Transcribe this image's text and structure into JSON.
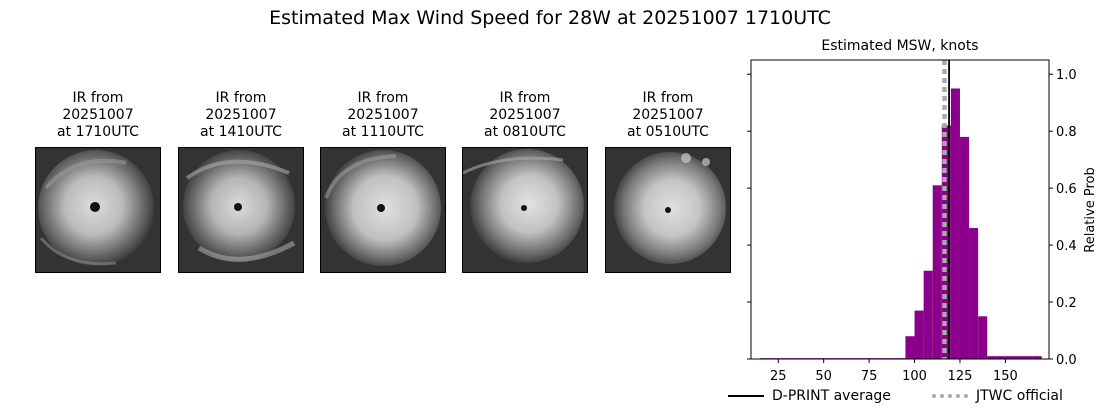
{
  "figure": {
    "title": "Estimated Max Wind Speed for 28W at 20251007 1710UTC"
  },
  "ir_panels": [
    {
      "caption": "IR from\n20251007\nat 1710UTC"
    },
    {
      "caption": "IR from\n20251007\nat 1410UTC"
    },
    {
      "caption": "IR from\n20251007\nat 1110UTC"
    },
    {
      "caption": "IR from\n20251007\nat 0810UTC"
    },
    {
      "caption": "IR from\n20251007\nat 0510UTC"
    }
  ],
  "chart_data": {
    "type": "bar",
    "title": "Estimated MSW, knots",
    "xlabel": "",
    "ylabel": "Relative Prob",
    "xlim": [
      10,
      174
    ],
    "ylim": [
      0,
      1.05
    ],
    "x_ticks": [
      25,
      50,
      75,
      100,
      125,
      150
    ],
    "y_ticks": [
      0.0,
      0.2,
      0.4,
      0.6,
      0.8,
      1.0
    ],
    "y_axis_side": "right",
    "bin_width": 5,
    "bar_color": "#8b008b",
    "bins": [
      {
        "x": 15,
        "value": 0.003
      },
      {
        "x": 20,
        "value": 0.003
      },
      {
        "x": 25,
        "value": 0.003
      },
      {
        "x": 30,
        "value": 0.003
      },
      {
        "x": 35,
        "value": 0.003
      },
      {
        "x": 40,
        "value": 0.003
      },
      {
        "x": 45,
        "value": 0.003
      },
      {
        "x": 50,
        "value": 0.003
      },
      {
        "x": 55,
        "value": 0.003
      },
      {
        "x": 60,
        "value": 0.003
      },
      {
        "x": 65,
        "value": 0.003
      },
      {
        "x": 70,
        "value": 0.003
      },
      {
        "x": 75,
        "value": 0.003
      },
      {
        "x": 80,
        "value": 0.003
      },
      {
        "x": 85,
        "value": 0.003
      },
      {
        "x": 90,
        "value": 0.003
      },
      {
        "x": 95,
        "value": 0.08
      },
      {
        "x": 100,
        "value": 0.17
      },
      {
        "x": 105,
        "value": 0.31
      },
      {
        "x": 110,
        "value": 0.61
      },
      {
        "x": 115,
        "value": 0.82
      },
      {
        "x": 120,
        "value": 0.95
      },
      {
        "x": 125,
        "value": 0.78
      },
      {
        "x": 130,
        "value": 0.46
      },
      {
        "x": 135,
        "value": 0.15
      },
      {
        "x": 140,
        "value": 0.01
      },
      {
        "x": 145,
        "value": 0.01
      },
      {
        "x": 150,
        "value": 0.01
      },
      {
        "x": 155,
        "value": 0.01
      },
      {
        "x": 160,
        "value": 0.01
      },
      {
        "x": 165,
        "value": 0.01
      }
    ],
    "lines": [
      {
        "name": "D-PRINT average",
        "x": 119,
        "color": "#000000",
        "style": "solid"
      },
      {
        "name": "JTWC official",
        "x": 116.5,
        "color": "#aaaaaa",
        "style": "dotted"
      }
    ],
    "legend": {
      "placement": "bottom",
      "entries": [
        "D-PRINT average",
        "JTWC official"
      ]
    }
  }
}
